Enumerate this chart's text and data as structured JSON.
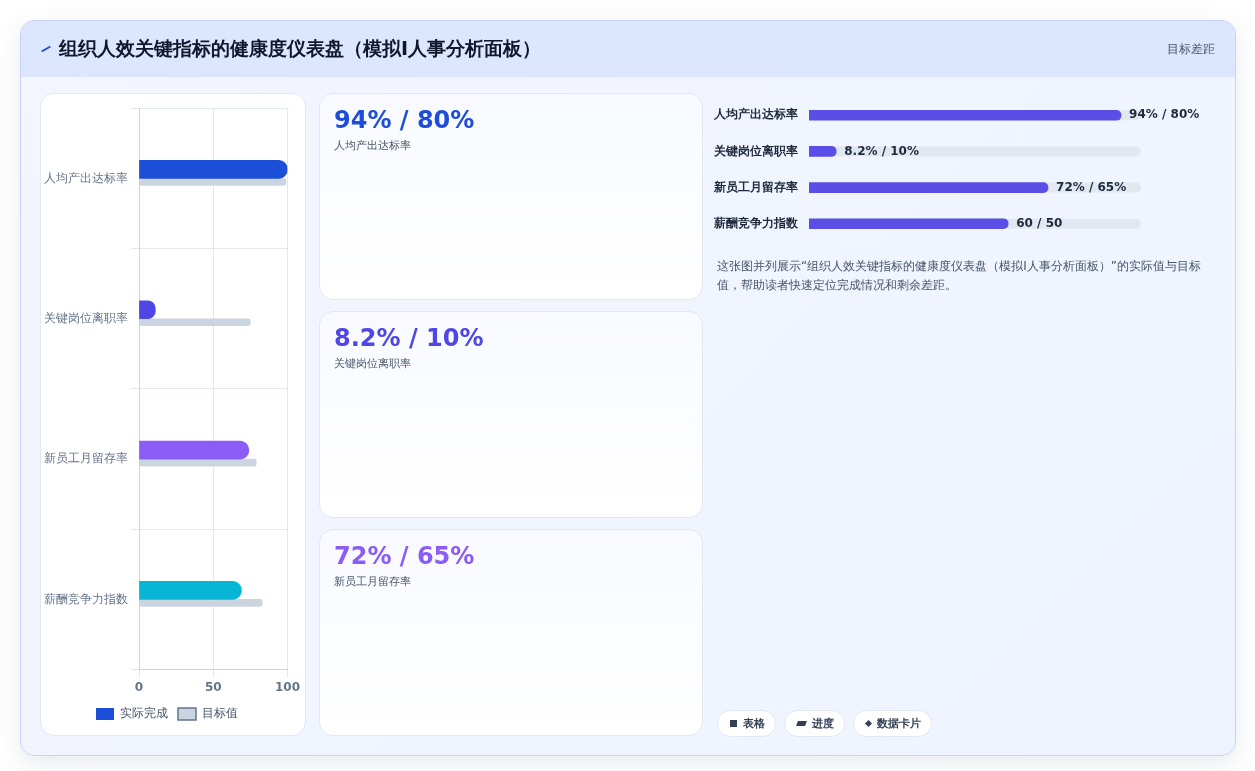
{
  "chart_data": [
    {
      "type": "other",
      "title": "组织人效关键指标的健康度仪表盘（模拟I人事分析面板）",
      "annotations": [
        "目标差距"
      ]
    },
    {
      "type": "bar",
      "orientation": "horizontal",
      "categories": [
        "人均产出达标率",
        "关键岗位离职率",
        "新员工月留存率",
        "薪酬竞争力指数"
      ],
      "series": [
        {
          "name": "实际完成",
          "color": "#1d4ed8",
          "colors": [
            "#1d4ed8",
            "#4f46e5",
            "#8b5cf6",
            "#06b6d4"
          ],
          "values": [
            100,
            11,
            74,
            69
          ]
        },
        {
          "name": "目标值",
          "color": "#cbd5e1",
          "values": [
            99,
            75,
            79,
            83
          ]
        }
      ],
      "xlim": [
        0,
        100
      ],
      "xticks": [
        0,
        50,
        100
      ],
      "grid": true,
      "legend": "bottom"
    },
    {
      "type": "other",
      "annotations": [
        "94% / 80%",
        "人均产出达标率",
        "8.2% / 10%",
        "关键岗位离职率",
        "72% / 65%",
        "新员工月留存率"
      ]
    },
    {
      "type": "bar",
      "orientation": "horizontal",
      "categories": [
        "人均产出达标率",
        "关键岗位离职率",
        "新员工月留存率",
        "薪酬竞争力指数"
      ],
      "color": "#5b4ee6",
      "values": [
        94,
        8.2,
        72,
        60
      ],
      "value_labels": [
        "94% / 80%",
        "8.2% / 10%",
        "72% / 65%",
        "60 / 50"
      ]
    },
    {
      "type": "other",
      "annotations": [
        "这张图并列展示“组织人效关键指标的健康度仪表盘（模拟I人事分析面板）”的实际值与目标值，帮助读者快速定位完成情况和剩余差距。",
        "表格",
        "进度",
        "数据卡片"
      ]
    }
  ]
}
